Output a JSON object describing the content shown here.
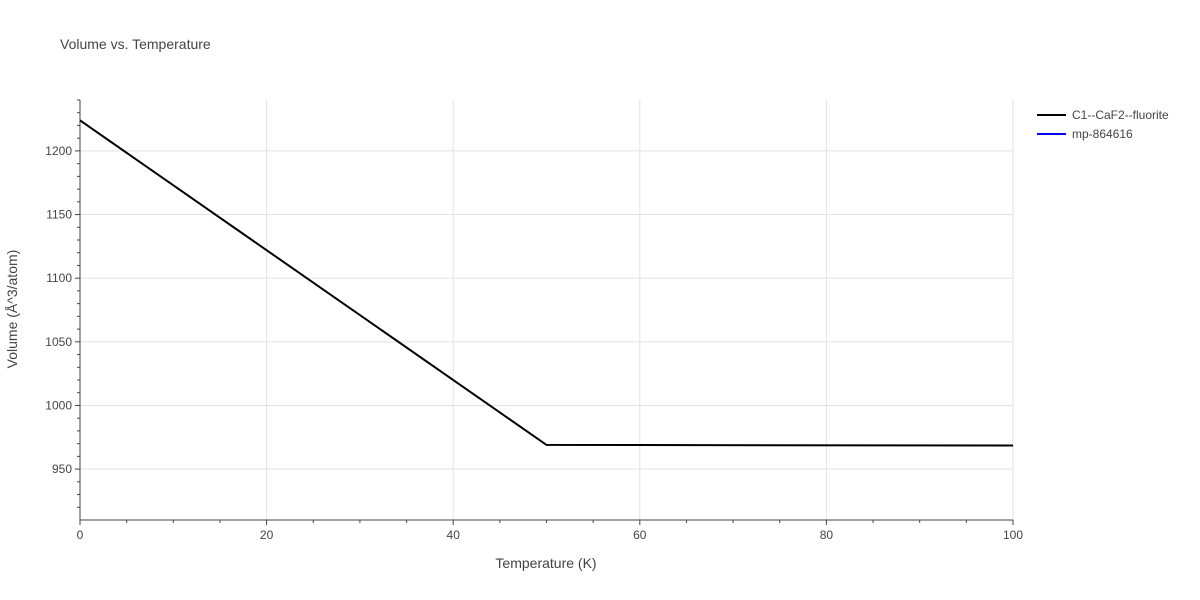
{
  "chart_data": {
    "type": "line",
    "title": "Volume vs. Temperature",
    "xlabel": "Temperature (K)",
    "ylabel": "Volume (Å^3/atom)",
    "xlim": [
      0,
      100
    ],
    "ylim": [
      910,
      1240
    ],
    "x_ticks": [
      0,
      20,
      40,
      60,
      80,
      100
    ],
    "y_ticks": [
      950,
      1000,
      1050,
      1100,
      1150,
      1200
    ],
    "grid": true,
    "legend_position": "top-right",
    "series": [
      {
        "name": "C1--CaF2--fluorite",
        "color": "#000000",
        "x": [
          0,
          50,
          100
        ],
        "y": [
          1224,
          969,
          968.5
        ]
      },
      {
        "name": "mp-864616",
        "color": "#0000ff",
        "x": [],
        "y": []
      }
    ]
  }
}
